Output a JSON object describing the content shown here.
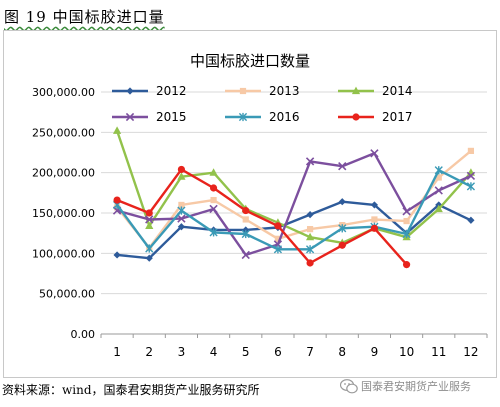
{
  "caption": "图 19 中国标胶进口量",
  "source": "资料来源：wind，国泰君安期货产业服务研究所",
  "watermark": "国泰君安期货产业服务",
  "chart_data": {
    "type": "line",
    "title": "中国标胶进口数量",
    "x": [
      1,
      2,
      3,
      4,
      5,
      6,
      7,
      8,
      9,
      10,
      11,
      12
    ],
    "ylim": [
      0,
      300000
    ],
    "yticks": [
      0,
      50000,
      100000,
      150000,
      200000,
      250000,
      300000
    ],
    "ytick_labels": [
      "0.00",
      "50,000.00",
      "100,000.00",
      "150,000.00",
      "200,000.00",
      "250,000.00",
      "300,000.00"
    ],
    "xtick_labels": [
      "1",
      "2",
      "3",
      "4",
      "5",
      "6",
      "7",
      "8",
      "9",
      "10",
      "11",
      "12"
    ],
    "grid": "horizontal",
    "legend_position": "top",
    "series": [
      {
        "name": "2012",
        "color": "#2e5b9a",
        "marker": "diamond",
        "values": [
          98000,
          94000,
          133000,
          129000,
          129000,
          132000,
          148000,
          164000,
          160000,
          125000,
          160000,
          141000
        ]
      },
      {
        "name": "2013",
        "color": "#f7c9a6",
        "marker": "square",
        "values": [
          157000,
          107000,
          160000,
          166000,
          142000,
          118000,
          130000,
          135000,
          142000,
          140000,
          194000,
          227000
        ]
      },
      {
        "name": "2014",
        "color": "#92c24b",
        "marker": "triangle",
        "values": [
          252000,
          134000,
          195000,
          200000,
          155000,
          138000,
          120000,
          113000,
          131000,
          120000,
          155000,
          200000
        ]
      },
      {
        "name": "2015",
        "color": "#7c4f9e",
        "marker": "x",
        "values": [
          153000,
          142000,
          143000,
          155000,
          98000,
          111000,
          214000,
          208000,
          224000,
          152000,
          178000,
          196000
        ]
      },
      {
        "name": "2016",
        "color": "#3a9ab6",
        "marker": "asterisk",
        "values": [
          160000,
          106000,
          153000,
          126000,
          124000,
          105000,
          105000,
          131000,
          133000,
          124000,
          203000,
          183000
        ]
      },
      {
        "name": "2017",
        "color": "#e8231c",
        "marker": "circle",
        "values": [
          166000,
          150000,
          204000,
          181000,
          153000,
          134000,
          88000,
          110000,
          131000,
          86000,
          null,
          null
        ]
      }
    ]
  }
}
